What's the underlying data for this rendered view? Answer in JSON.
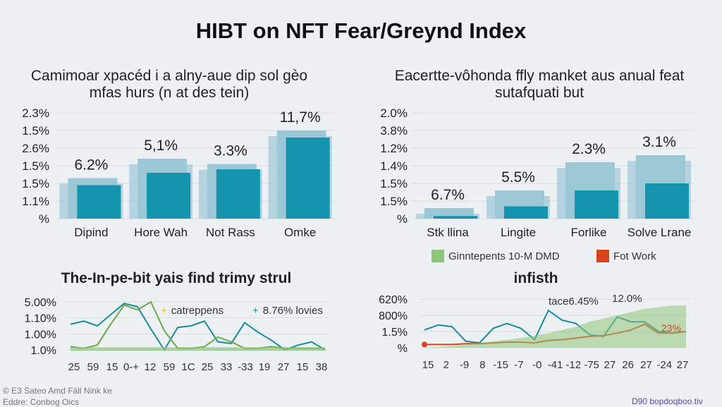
{
  "title": "HIBT on NFT Fear/Greynd Index",
  "colors": {
    "bar_dark": "#1595ad",
    "bar_light": "#9cc8d6",
    "line_teal": "#1a8a9c",
    "line_green": "#6aaa4a",
    "line_red": "#d9441f",
    "area_green": "#8fc47a",
    "grid": "#d5dbe0"
  },
  "chart_data": [
    {
      "type": "bar",
      "title": "Camimoar xpacéd i a alny-aue dip sol gèo mfas hurs (n at des tein)",
      "yticks": [
        "%",
        "1.1%",
        "1.5%",
        "1.5%",
        "2.6%",
        "1.5%",
        "2.3%"
      ],
      "categories": [
        "Dipind",
        "Hore Wah",
        "Not Rass",
        "Omke"
      ],
      "data_labels": [
        "6.2%",
        "5,1%",
        "3.3%",
        "11,7%"
      ],
      "series": [
        {
          "name": "light",
          "values": [
            2.3,
            3.4,
            3.1,
            5.0
          ]
        },
        {
          "name": "dark",
          "values": [
            1.9,
            2.6,
            2.8,
            4.6
          ]
        }
      ],
      "ylim": [
        0,
        6
      ]
    },
    {
      "type": "bar",
      "title": "Eacertte-vôhonda ffly manket aus anual feat sutafquati but",
      "yticks": [
        "%",
        "1.5%",
        "1.5%",
        "1.4%",
        "1.2%",
        "3.8%",
        "2.0%"
      ],
      "categories": [
        "Stk llina",
        "Lingite",
        "Forlike",
        "Solve Lrane"
      ],
      "data_labels": [
        "6.7%",
        "5.5%",
        "2.3%",
        "3.1%"
      ],
      "series": [
        {
          "name": "light",
          "values": [
            0.6,
            1.6,
            3.2,
            3.6
          ]
        },
        {
          "name": "dark",
          "values": [
            0.15,
            0.7,
            1.6,
            2.0
          ]
        }
      ],
      "legend": [
        "Ginntepents 10-M DMD",
        "Fot Work"
      ],
      "ylim": [
        0,
        6
      ]
    },
    {
      "type": "line",
      "title": "The-In-pe-bit yais find trimy strul",
      "yticks": [
        "1.0%",
        "1.00%",
        "1.10%",
        "5.00%"
      ],
      "xticks": [
        "25",
        "59",
        "15",
        "0-+",
        "12",
        "59",
        "1C",
        "25",
        "33",
        "-33",
        "19",
        "27",
        "15",
        "38"
      ],
      "legend": [
        "catreppens",
        "8.76% lovies"
      ],
      "series": [
        {
          "name": "teal",
          "values": [
            1.6,
            1.8,
            1.5,
            2.2,
            2.9,
            2.7,
            1.3,
            0.0,
            1.4,
            1.5,
            1.8,
            0.5,
            0.4,
            1.7,
            1.1,
            0.6,
            0.0,
            0.3,
            0.5,
            0.0
          ]
        },
        {
          "name": "green",
          "values": [
            0.2,
            0.1,
            0.3,
            1.6,
            2.8,
            2.5,
            3.0,
            1.2,
            0.1,
            0.1,
            0.2,
            0.8,
            0.5,
            0.1,
            0.1,
            0.2,
            0.1,
            0.1,
            0.1,
            0.1
          ]
        },
        {
          "name": "baseline",
          "values": [
            0.05,
            0.05,
            0.05,
            0.05,
            0.05,
            0.05,
            0.05,
            0.05,
            0.05,
            0.05,
            0.05,
            0.05,
            0.05,
            0.05,
            0.05,
            0.05,
            0.05,
            0.05,
            0.05,
            0.05
          ]
        }
      ],
      "ylim": [
        0,
        3
      ]
    },
    {
      "type": "line",
      "title": "infisth",
      "yticks": [
        "%",
        "1.5%",
        "800%",
        "620%"
      ],
      "xticks": [
        "15",
        "2",
        "-9",
        "8",
        "-15",
        "-7",
        "-0",
        "-41",
        "-12",
        "-75",
        "27",
        "26",
        "27",
        "-24",
        "27"
      ],
      "annotations": [
        "tace6.45%",
        "12.0%",
        "23%"
      ],
      "series": [
        {
          "name": "teal",
          "values": [
            1.1,
            1.4,
            1.3,
            0.4,
            0.3,
            1.2,
            1.5,
            1.2,
            0.5,
            2.3,
            1.7,
            1.5,
            0.8,
            0.7,
            1.9,
            1.6,
            1.6,
            1.0,
            0.9,
            1.0
          ]
        },
        {
          "name": "red",
          "values": [
            0.2,
            0.2,
            0.2,
            0.25,
            0.25,
            0.3,
            0.35,
            0.35,
            0.3,
            0.45,
            0.5,
            0.6,
            0.7,
            0.75,
            0.9,
            1.1,
            1.45,
            0.9,
            0.9,
            1.0
          ]
        },
        {
          "name": "area",
          "values": [
            0.0,
            0.05,
            0.1,
            0.2,
            0.3,
            0.4,
            0.5,
            0.6,
            0.75,
            0.9,
            1.1,
            1.3,
            1.6,
            1.8,
            2.0,
            2.2,
            2.4,
            2.5,
            2.6,
            2.6
          ]
        }
      ],
      "ylim": [
        0,
        3
      ]
    }
  ],
  "footer": {
    "left1": "© E3 Sateo Amd Fäll Nink ke",
    "left2": "Eddre: Conbog Oics",
    "right": "D90 bopdoqboo.tiv"
  }
}
